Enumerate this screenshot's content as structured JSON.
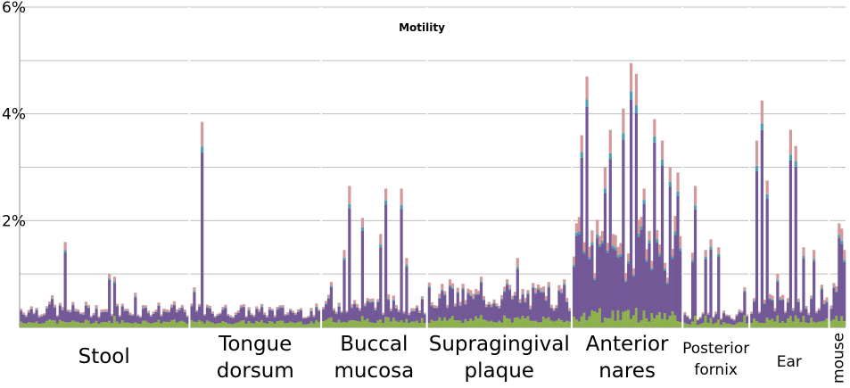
{
  "chart_data": {
    "type": "bar",
    "stacked": true,
    "title": "Motility",
    "xlabel": "",
    "ylabel": "",
    "ylim": [
      0,
      6
    ],
    "y_ticks": [
      {
        "value": 0,
        "label": ""
      },
      {
        "value": 1,
        "label": ""
      },
      {
        "value": 2,
        "label": "2%"
      },
      {
        "value": 3,
        "label": ""
      },
      {
        "value": 4,
        "label": "4%"
      },
      {
        "value": 5,
        "label": ""
      },
      {
        "value": 6,
        "label": "6%"
      }
    ],
    "grid": true,
    "legend": "none",
    "series_colors": [
      "#8db14c",
      "#735898",
      "#4e9fb6",
      "#d49a9a"
    ],
    "groups": [
      {
        "label_lines": [
          "Stool"
        ],
        "count": 65,
        "base": 0.35,
        "spikes": [
          [
            17,
            1.6
          ],
          [
            34,
            1.0
          ],
          [
            36,
            0.95
          ],
          [
            44,
            0.65
          ],
          [
            12,
            0.6
          ]
        ]
      },
      {
        "label_lines": [
          "Tongue",
          "dorsum"
        ],
        "count": 50,
        "base": 0.32,
        "spikes": [
          [
            4,
            3.85
          ],
          [
            1,
            0.75
          ]
        ]
      },
      {
        "label_lines": [
          "Buccal",
          "mucosa"
        ],
        "count": 40,
        "base": 0.45,
        "spikes": [
          [
            10,
            2.65
          ],
          [
            15,
            2.05
          ],
          [
            8,
            1.45
          ],
          [
            24,
            2.6
          ],
          [
            30,
            2.6
          ],
          [
            22,
            1.75
          ],
          [
            32,
            1.3
          ],
          [
            3,
            0.85
          ]
        ]
      },
      {
        "label_lines": [
          "Supragingival",
          "plaque"
        ],
        "count": 55,
        "base": 0.6,
        "spikes": [
          [
            8,
            0.9
          ],
          [
            20,
            0.95
          ],
          [
            30,
            0.9
          ],
          [
            34,
            1.3
          ],
          [
            46,
            0.85
          ],
          [
            52,
            0.9
          ]
        ]
      },
      {
        "label_lines": [
          "Anterior",
          "nares"
        ],
        "count": 42,
        "base": 1.5,
        "spikes": [
          [
            3,
            3.6
          ],
          [
            5,
            4.7
          ],
          [
            12,
            3.0
          ],
          [
            14,
            3.7
          ],
          [
            19,
            4.1
          ],
          [
            22,
            4.95
          ],
          [
            24,
            4.75
          ],
          [
            27,
            2.6
          ],
          [
            31,
            3.9
          ],
          [
            34,
            3.5
          ],
          [
            37,
            3.0
          ],
          [
            40,
            2.9
          ]
        ]
      },
      {
        "label_lines": [
          "Posterior",
          "fornix"
        ],
        "count": 25,
        "base": 0.25,
        "spikes": [
          [
            3,
            1.4
          ],
          [
            4,
            2.65
          ],
          [
            8,
            1.45
          ],
          [
            10,
            1.65
          ],
          [
            13,
            1.5
          ],
          [
            23,
            0.75
          ]
        ]
      },
      {
        "label_lines": [
          "Ear"
        ],
        "count": 30,
        "base": 0.45,
        "spikes": [
          [
            2,
            3.5
          ],
          [
            4,
            4.25
          ],
          [
            6,
            2.75
          ],
          [
            10,
            1.0
          ],
          [
            15,
            3.7
          ],
          [
            17,
            3.4
          ],
          [
            20,
            1.5
          ],
          [
            24,
            1.45
          ],
          [
            27,
            0.8
          ]
        ]
      },
      {
        "label_lines": [
          "mouse"
        ],
        "count": 6,
        "base": 0.6,
        "spikes": [
          [
            3,
            1.95
          ],
          [
            4,
            1.85
          ],
          [
            5,
            1.45
          ]
        ]
      }
    ]
  }
}
